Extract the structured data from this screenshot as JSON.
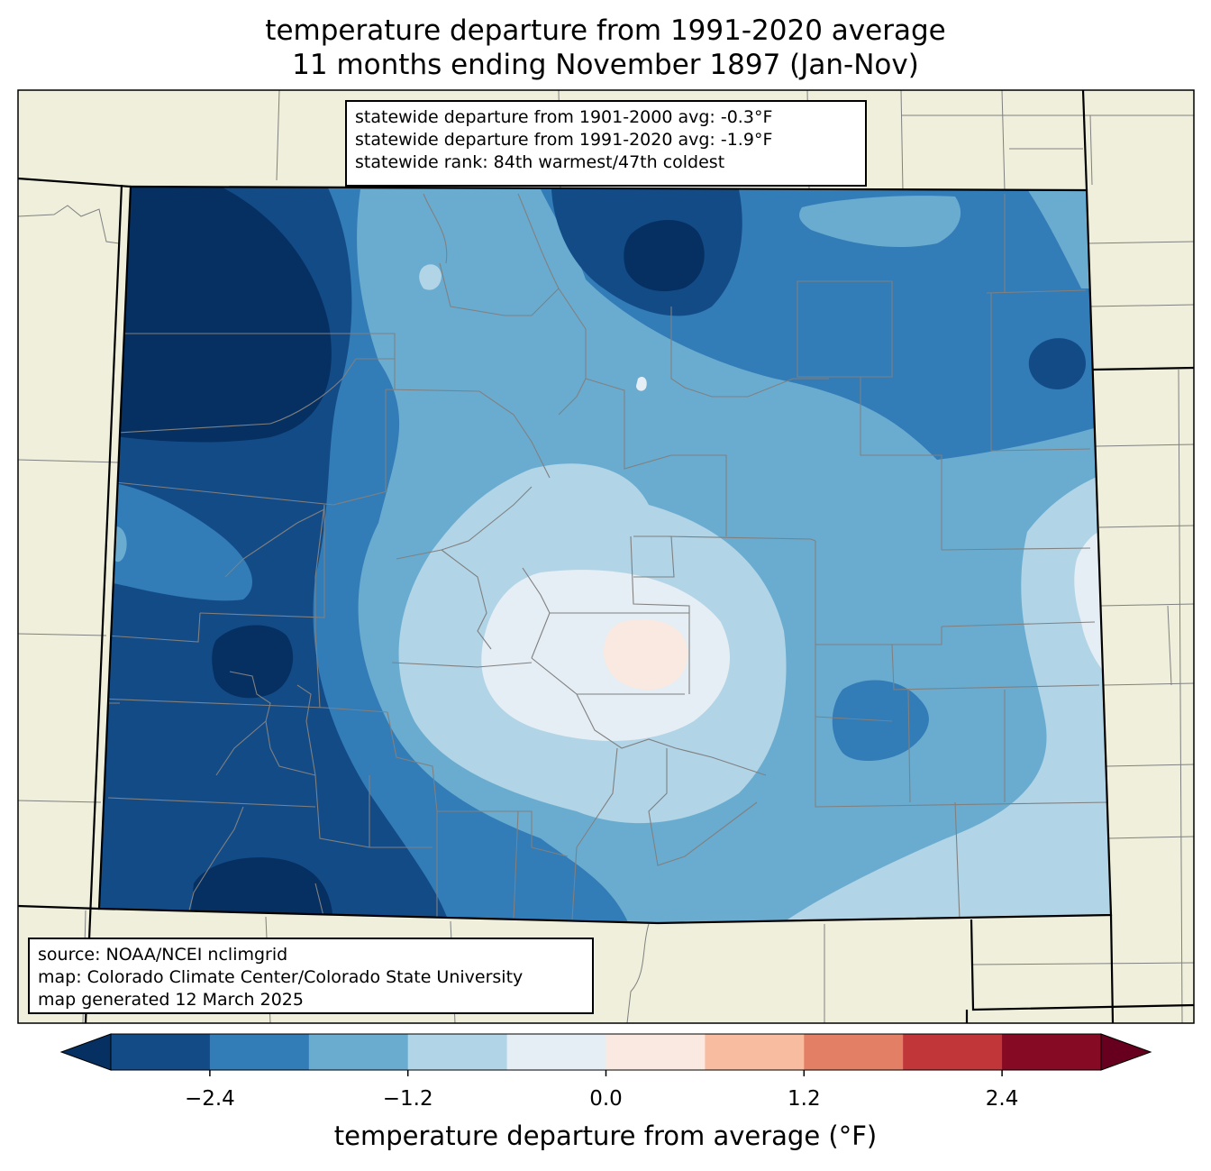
{
  "title": {
    "line1": "temperature departure from 1991-2020 average",
    "line2": "11 months ending November 1897 (Jan-Nov)"
  },
  "stats": [
    "statewide departure from 1901-2000 avg: -0.3°F",
    "statewide departure from 1991-2020 avg: -1.9°F",
    "statewide rank: 84th warmest/47th coldest"
  ],
  "source": [
    "source: NOAA/NCEI nclimgrid",
    "map: Colorado Climate Center/Colorado State University",
    "map generated 12 March 2025"
  ],
  "colorbar": {
    "label": "temperature departure from average (°F)",
    "min": -3.0,
    "max": 3.0,
    "bins": [
      {
        "from": -3.0,
        "to": -2.4,
        "color": "#134b87"
      },
      {
        "from": -2.4,
        "to": -1.8,
        "color": "#327cb7"
      },
      {
        "from": -1.8,
        "to": -1.2,
        "color": "#6aacd0"
      },
      {
        "from": -1.2,
        "to": -0.6,
        "color": "#b1d4e7"
      },
      {
        "from": -0.6,
        "to": 0.0,
        "color": "#e5eef4"
      },
      {
        "from": 0.0,
        "to": 0.6,
        "color": "#f9e9e0"
      },
      {
        "from": 0.6,
        "to": 1.2,
        "color": "#f8bca1"
      },
      {
        "from": 1.2,
        "to": 1.8,
        "color": "#e27f65"
      },
      {
        "from": 1.8,
        "to": 2.4,
        "color": "#c13639"
      },
      {
        "from": 2.4,
        "to": 3.0,
        "color": "#870a24"
      }
    ],
    "under_color": "#053061",
    "over_color": "#67001f",
    "ticks": [
      {
        "value": -2.4,
        "label": "−2.4"
      },
      {
        "value": -1.2,
        "label": "−1.2"
      },
      {
        "value": 0.0,
        "label": "0.0"
      },
      {
        "value": 1.2,
        "label": "1.2"
      },
      {
        "value": 2.4,
        "label": "2.4"
      }
    ]
  },
  "colors": {
    "land": "#efefdb",
    "county_lines": "#808080",
    "state_lines": "#000000"
  }
}
